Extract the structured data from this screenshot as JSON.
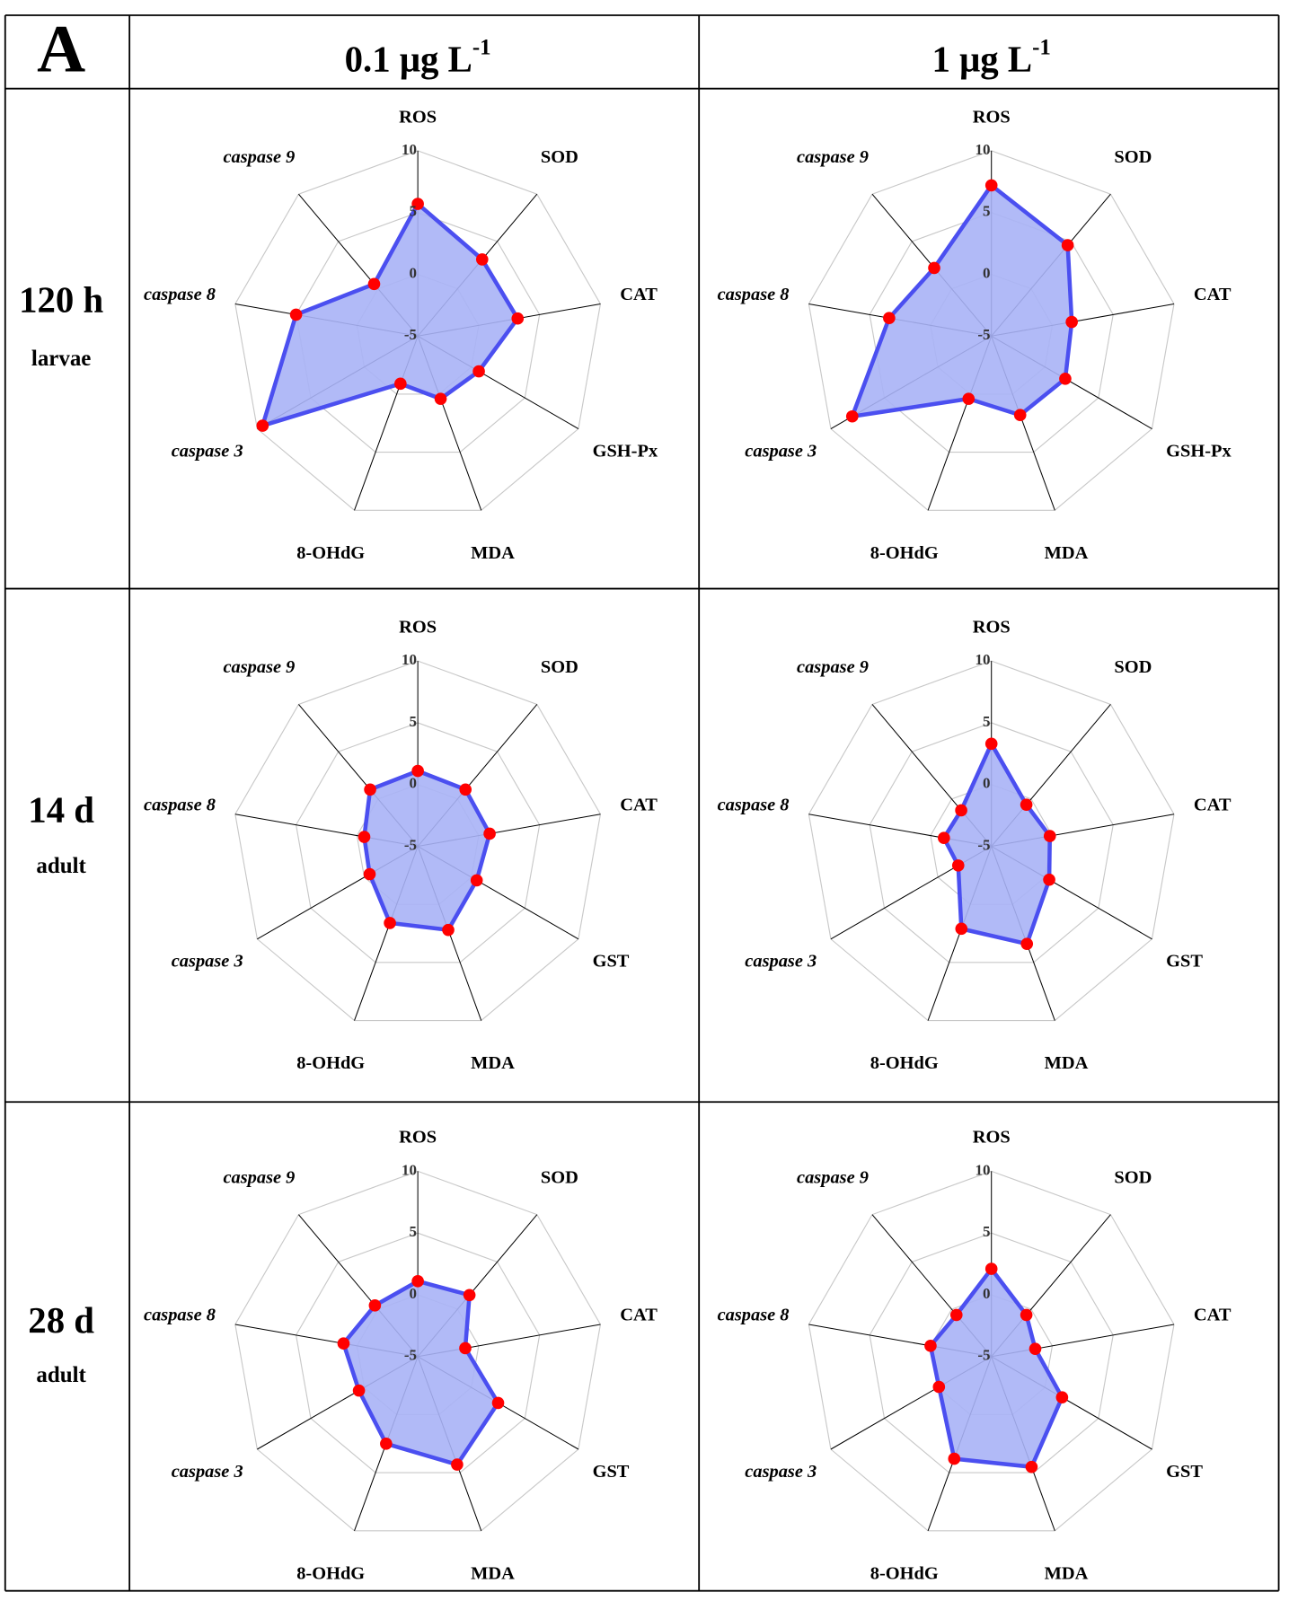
{
  "table": {
    "panel": "A",
    "columns": [
      {
        "text": "0.1 μg L",
        "sup": "-1"
      },
      {
        "text": "1 μg L",
        "sup": "-1"
      }
    ],
    "rows": [
      {
        "label": "120 h",
        "sublabel": "larvae"
      },
      {
        "label": "14 d",
        "sublabel": "adult"
      },
      {
        "label": "28 d",
        "sublabel": "adult"
      }
    ]
  },
  "chart_data": [
    {
      "type": "radar",
      "categories": [
        "ROS",
        "SOD",
        "CAT",
        "GSH-Px",
        "MDA",
        "8-OHdG",
        "caspase 3",
        "caspase 8",
        "caspase 9"
      ],
      "values": [
        5.7,
        3.1,
        3.2,
        0.7,
        0.4,
        -0.9,
        9.5,
        5.0,
        0.5
      ],
      "rlim": [
        -5,
        10
      ],
      "rticks": [
        -5,
        0,
        5,
        10
      ],
      "color": "#4b4ff0",
      "fill_color": "#a9b2f6",
      "marker_color": "#ff0000",
      "grid": true
    },
    {
      "type": "radar",
      "categories": [
        "ROS",
        "SOD",
        "CAT",
        "GSH-Px",
        "MDA",
        "8-OHdG",
        "caspase 3",
        "caspase 8",
        "caspase 9"
      ],
      "values": [
        7.2,
        4.6,
        1.6,
        1.9,
        1.8,
        0.4,
        8.0,
        3.4,
        2.2
      ],
      "rlim": [
        -5,
        10
      ],
      "rticks": [
        -5,
        0,
        5,
        10
      ],
      "color": "#4b4ff0",
      "fill_color": "#a9b2f6",
      "marker_color": "#ff0000",
      "grid": true
    },
    {
      "type": "radar",
      "categories": [
        "ROS",
        "SOD",
        "CAT",
        "GST",
        "MDA",
        "8-OHdG",
        "caspase 3",
        "caspase 8",
        "caspase 9"
      ],
      "values": [
        1.1,
        1.0,
        0.9,
        0.5,
        2.2,
        1.6,
        -0.5,
        -0.6,
        1.0
      ],
      "rlim": [
        -5,
        10
      ],
      "rticks": [
        -5,
        0,
        5,
        10
      ],
      "color": "#4b4ff0",
      "fill_color": "#a9b2f6",
      "marker_color": "#ff0000",
      "grid": true
    },
    {
      "type": "radar",
      "categories": [
        "ROS",
        "SOD",
        "CAT",
        "GST",
        "MDA",
        "8-OHdG",
        "caspase 3",
        "caspase 8",
        "caspase 9"
      ],
      "values": [
        3.3,
        -0.6,
        -0.2,
        0.4,
        3.4,
        2.1,
        -1.9,
        -1.1,
        -1.2
      ],
      "rlim": [
        -5,
        10
      ],
      "rticks": [
        -5,
        0,
        5,
        10
      ],
      "color": "#4b4ff0",
      "fill_color": "#a9b2f6",
      "marker_color": "#ff0000",
      "grid": true
    },
    {
      "type": "radar",
      "categories": [
        "ROS",
        "SOD",
        "CAT",
        "GST",
        "MDA",
        "8-OHdG",
        "caspase 3",
        "caspase 8",
        "caspase 9"
      ],
      "values": [
        1.1,
        1.5,
        -1.1,
        2.5,
        4.3,
        2.5,
        0.5,
        1.1,
        0.4
      ],
      "rlim": [
        -5,
        10
      ],
      "rticks": [
        -5,
        0,
        5,
        10
      ],
      "color": "#4b4ff0",
      "fill_color": "#a9b2f6",
      "marker_color": "#ff0000",
      "grid": true
    },
    {
      "type": "radar",
      "categories": [
        "ROS",
        "SOD",
        "CAT",
        "GST",
        "MDA",
        "8-OHdG",
        "caspase 3",
        "caspase 8",
        "caspase 9"
      ],
      "values": [
        2.1,
        -0.6,
        -1.4,
        1.6,
        4.5,
        3.8,
        -0.1,
        0.0,
        -0.6
      ],
      "rlim": [
        -5,
        10
      ],
      "rticks": [
        -5,
        0,
        5,
        10
      ],
      "color": "#4b4ff0",
      "fill_color": "#a9b2f6",
      "marker_color": "#ff0000",
      "grid": true
    }
  ]
}
